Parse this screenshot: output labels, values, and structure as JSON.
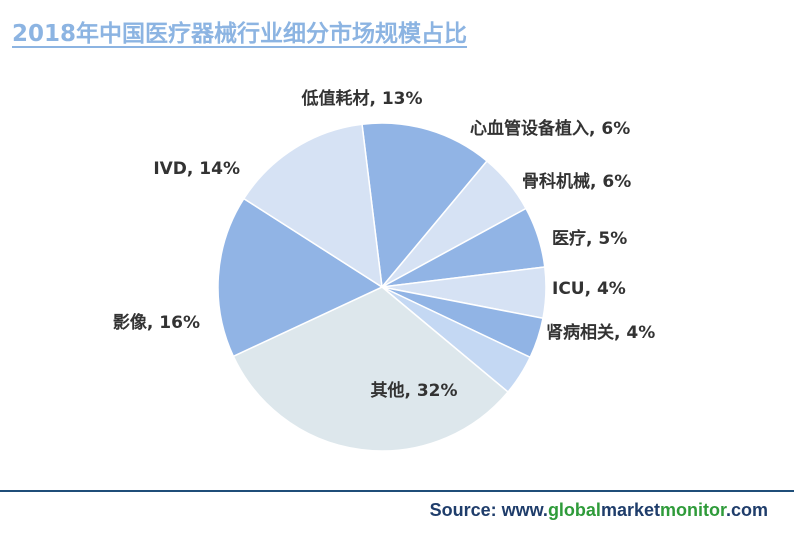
{
  "title": "2018年中国医疗器械行业细分市场规模占比",
  "source": {
    "prefix": "Source: www.",
    "part_global": "global",
    "part_market": "market",
    "part_monitor": "monitor",
    "suffix": ".com"
  },
  "chart_data": {
    "type": "pie",
    "title": "2018年中国医疗器械行业细分市场规模占比",
    "unit": "%",
    "categories": [
      "低值耗材",
      "心血管设备植入",
      "骨科机械",
      "医疗",
      "ICU",
      "肾病相关",
      "其他",
      "影像",
      "IVD"
    ],
    "values": [
      13,
      6,
      6,
      5,
      4,
      4,
      32,
      16,
      14
    ],
    "labels": [
      "低值耗材, 13%",
      "心血管设备植入, 6%",
      "骨科机械, 6%",
      "医疗, 5%",
      "ICU, 4%",
      "肾病相关, 4%",
      "其他, 32%",
      "影像, 16%",
      "IVD, 14%"
    ],
    "colors": [
      "#91b4e5",
      "#d6e2f4",
      "#91b4e5",
      "#d6e2f4",
      "#91b4e5",
      "#c4d8f3",
      "#dde7ec",
      "#91b4e5",
      "#d6e2f4"
    ],
    "legend": "none",
    "data_labels": "outside"
  }
}
